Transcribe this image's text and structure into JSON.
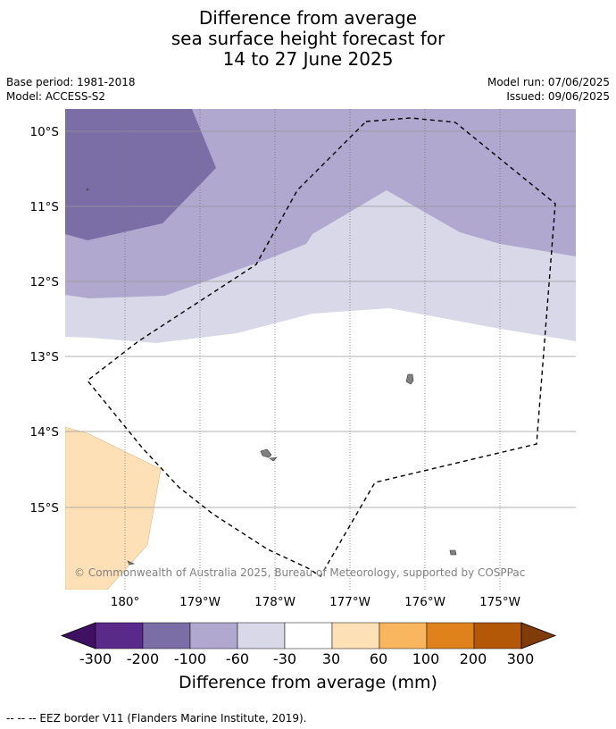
{
  "title": {
    "line1": "Difference from average",
    "line2": "sea surface height forecast for",
    "line3": "14 to 27 June 2025"
  },
  "meta": {
    "base_period": "Base period: 1981-2018",
    "model": "Model: ACCESS-S2",
    "model_run": "Model run: 07/06/2025",
    "issued": "Issued: 09/06/2025"
  },
  "map": {
    "lat_labels": [
      "10°S",
      "11°S",
      "12°S",
      "13°S",
      "14°S",
      "15°S"
    ],
    "lon_labels": [
      "180°",
      "179°W",
      "178°W",
      "177°W",
      "176°W",
      "175°W"
    ],
    "copyright": "© Commonwealth of Australia 2025, Bureau of Meteorology, supported by COSPPac",
    "colors": {
      "lt_minus_200": "#7b6ea6",
      "minus_100_to_minus_60": "#b0a8cf",
      "minus_60_to_minus_30": "#d8d8e8",
      "minus_30_to_30": "#ffffff",
      "30_to_60": "#fde0b5",
      "land": "#808080"
    }
  },
  "colorbar": {
    "labels": [
      "-300",
      "-200",
      "-100",
      "-60",
      "-30",
      "30",
      "60",
      "100",
      "200",
      "300"
    ],
    "colors": [
      "#3f1063",
      "#5a2a8a",
      "#7b6ea6",
      "#b0a8cf",
      "#d8d8e8",
      "#ffffff",
      "#fde0b5",
      "#f9b65e",
      "#e0821c",
      "#b35806",
      "#7f3b08"
    ],
    "title": "Difference from average (mm)"
  },
  "footnote": "--  --  -- EEZ border V11 (Flanders Marine Institute, 2019)."
}
